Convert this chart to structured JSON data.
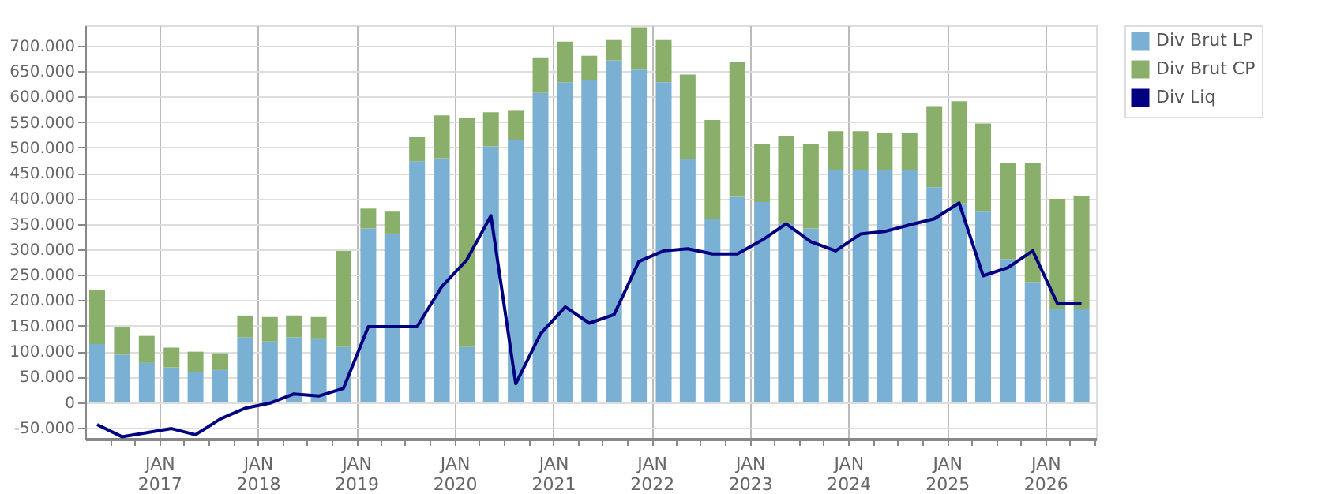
{
  "chart_data": {
    "type": "bar",
    "stacked": true,
    "x": [
      "2016-05-15",
      "2016-08-15",
      "2016-11-15",
      "2017-02-15",
      "2017-05-15",
      "2017-08-15",
      "2017-11-15",
      "2018-02-15",
      "2018-05-15",
      "2018-08-15",
      "2018-11-15",
      "2019-02-15",
      "2019-05-15",
      "2019-08-15",
      "2019-11-15",
      "2020-02-15",
      "2020-05-15",
      "2020-08-15",
      "2020-11-15",
      "2021-02-15",
      "2021-05-15",
      "2021-08-15",
      "2021-11-15",
      "2022-02-15",
      "2022-05-15",
      "2022-08-15",
      "2022-11-15",
      "2023-02-15",
      "2023-05-15",
      "2023-08-15",
      "2023-11-15",
      "2024-02-15",
      "2024-05-15",
      "2024-08-15",
      "2024-11-15",
      "2025-02-15",
      "2025-05-15",
      "2025-08-15",
      "2025-11-15",
      "2026-02-15",
      "2026-05-15"
    ],
    "series": [
      {
        "name": "Div Brut LP",
        "color": "#7ab0d4",
        "values": [
          114000,
          93000,
          77000,
          68000,
          59000,
          63000,
          127000,
          119000,
          127000,
          125000,
          108000,
          341000,
          331000,
          473000,
          479000,
          108000,
          502000,
          514000,
          607000,
          628000,
          632000,
          671000,
          653000,
          628000,
          477000,
          360000,
          403000,
          393000,
          351000,
          341000,
          455000,
          455000,
          455000,
          455000,
          422000,
          390000,
          374000,
          281000,
          236000,
          182000,
          182000
        ]
      },
      {
        "name": "Div Brut CP",
        "color": "#8aaf6a",
        "values": [
          106000,
          55000,
          53000,
          39000,
          40000,
          33000,
          43000,
          48000,
          43000,
          42000,
          189000,
          39000,
          43000,
          47000,
          84000,
          449000,
          67000,
          58000,
          70000,
          80000,
          48000,
          40000,
          83000,
          83000,
          166000,
          194000,
          265000,
          114000,
          172000,
          166000,
          77000,
          77000,
          74000,
          74000,
          159000,
          201000,
          173000,
          189000,
          234000,
          217000,
          223000
        ]
      },
      {
        "name": "Div Liq",
        "type": "line",
        "color": "#000080",
        "values": [
          -44000,
          -68000,
          -60000,
          -52000,
          -64000,
          -33000,
          -12000,
          -2000,
          16000,
          12000,
          27000,
          148000,
          148000,
          148000,
          227000,
          279000,
          366000,
          36000,
          134000,
          187000,
          155000,
          172000,
          276000,
          297000,
          301000,
          291000,
          291000,
          318000,
          350000,
          315000,
          297000,
          330000,
          335000,
          348000,
          360000,
          391000,
          248000,
          264000,
          297000,
          193000,
          193000
        ]
      }
    ],
    "ylim": [
      -72000,
      740000
    ],
    "yticks": [
      {
        "value": -50000,
        "label": "-50.000"
      },
      {
        "value": 0,
        "label": "0"
      },
      {
        "value": 50000,
        "label": "50.000"
      },
      {
        "value": 100000,
        "label": "100.000"
      },
      {
        "value": 150000,
        "label": "150.000"
      },
      {
        "value": 200000,
        "label": "200.000"
      },
      {
        "value": 250000,
        "label": "250.000"
      },
      {
        "value": 300000,
        "label": "300.000"
      },
      {
        "value": 350000,
        "label": "350.000"
      },
      {
        "value": 400000,
        "label": "400.000"
      },
      {
        "value": 450000,
        "label": "450.000"
      },
      {
        "value": 500000,
        "label": "500.000"
      },
      {
        "value": 550000,
        "label": "550.000"
      },
      {
        "value": 600000,
        "label": "600.000"
      },
      {
        "value": 650000,
        "label": "650.000"
      },
      {
        "value": 700000,
        "label": "700.000"
      }
    ],
    "xlim": [
      "2016-04-01",
      "2026-07-08"
    ],
    "xticks": [
      {
        "value": "2016-07-01",
        "label": null
      },
      {
        "value": "2016-10-01",
        "label": null
      },
      {
        "value": "2017-01-01",
        "label": "JAN 2017"
      },
      {
        "value": "2017-04-01",
        "label": null
      },
      {
        "value": "2017-07-01",
        "label": null
      },
      {
        "value": "2017-10-01",
        "label": null
      },
      {
        "value": "2018-01-01",
        "label": "JAN 2018"
      },
      {
        "value": "2018-04-01",
        "label": null
      },
      {
        "value": "2018-07-01",
        "label": null
      },
      {
        "value": "2018-10-01",
        "label": null
      },
      {
        "value": "2019-01-01",
        "label": "JAN 2019"
      },
      {
        "value": "2019-04-01",
        "label": null
      },
      {
        "value": "2019-07-01",
        "label": null
      },
      {
        "value": "2019-10-01",
        "label": null
      },
      {
        "value": "2020-01-01",
        "label": "JAN 2020"
      },
      {
        "value": "2020-04-01",
        "label": null
      },
      {
        "value": "2020-07-01",
        "label": null
      },
      {
        "value": "2020-10-01",
        "label": null
      },
      {
        "value": "2021-01-01",
        "label": "JAN 2021"
      },
      {
        "value": "2021-04-01",
        "label": null
      },
      {
        "value": "2021-07-01",
        "label": null
      },
      {
        "value": "2021-10-01",
        "label": null
      },
      {
        "value": "2022-01-01",
        "label": "JAN 2022"
      },
      {
        "value": "2022-04-01",
        "label": null
      },
      {
        "value": "2022-07-01",
        "label": null
      },
      {
        "value": "2022-10-01",
        "label": null
      },
      {
        "value": "2023-01-01",
        "label": "JAN 2023"
      },
      {
        "value": "2023-04-01",
        "label": null
      },
      {
        "value": "2023-07-01",
        "label": null
      },
      {
        "value": "2023-10-01",
        "label": null
      },
      {
        "value": "2024-01-01",
        "label": "JAN 2024"
      },
      {
        "value": "2024-04-01",
        "label": null
      },
      {
        "value": "2024-07-01",
        "label": null
      },
      {
        "value": "2024-10-01",
        "label": null
      },
      {
        "value": "2025-01-01",
        "label": "JAN 2025"
      },
      {
        "value": "2025-04-01",
        "label": null
      },
      {
        "value": "2025-07-01",
        "label": null
      },
      {
        "value": "2025-10-01",
        "label": null
      },
      {
        "value": "2026-01-01",
        "label": "JAN 2026"
      },
      {
        "value": "2026-04-01",
        "label": null
      },
      {
        "value": "2026-07-01",
        "label": null
      }
    ],
    "grid": true,
    "legend": "top right",
    "marker": "none",
    "line_style": "solid"
  }
}
